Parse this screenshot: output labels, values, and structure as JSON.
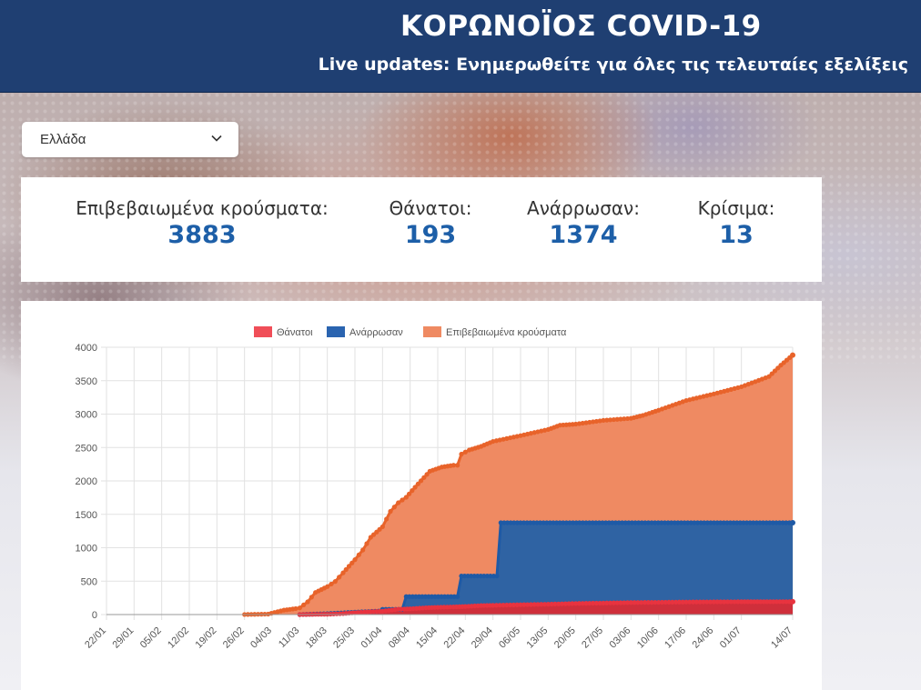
{
  "header": {
    "title": "ΚΟΡΩΝΟΪΟΣ COVID-19",
    "subtitle": "Live updates: Ενημερωθείτε για όλες τις τελευταίες εξελίξεις"
  },
  "country_select": {
    "value": "Ελλάδα",
    "icon": "chevron-down-icon"
  },
  "stats": [
    {
      "label": "Επιβεβαιωμένα κρούσματα:",
      "value": "3883"
    },
    {
      "label": "Θάνατοι:",
      "value": "193"
    },
    {
      "label": "Ανάρρωσαν:",
      "value": "1374"
    },
    {
      "label": "Κρίσιμα:",
      "value": "13"
    }
  ],
  "colors": {
    "header_bg": "#1f3f72",
    "stat_value": "#1d5fa8",
    "deaths": "#e8333f",
    "recovered": "#2a64b0",
    "confirmed": "#ef8a62",
    "confirmed_line": "#e8632a"
  },
  "chart_data": {
    "type": "area",
    "legend_position": "top-center",
    "grid": true,
    "ylim": [
      0,
      4000
    ],
    "yticks": [
      0,
      500,
      1000,
      1500,
      2000,
      2500,
      3000,
      3500,
      4000
    ],
    "xticks": [
      "22/01",
      "29/01",
      "05/02",
      "12/02",
      "19/02",
      "26/02",
      "04/03",
      "11/03",
      "18/03",
      "25/03",
      "01/04",
      "08/04",
      "15/04",
      "22/04",
      "29/04",
      "06/05",
      "13/05",
      "20/05",
      "27/05",
      "03/06",
      "10/06",
      "17/06",
      "24/06",
      "01/07",
      "14/07"
    ],
    "x_start": "22/01",
    "x_end": "14/07",
    "series": [
      {
        "name": "Θάνατοι",
        "color": "#e8333f",
        "points": [
          [
            "11/03",
            0
          ],
          [
            "15/03",
            4
          ],
          [
            "18/03",
            5
          ],
          [
            "22/03",
            15
          ],
          [
            "25/03",
            28
          ],
          [
            "29/03",
            43
          ],
          [
            "01/04",
            50
          ],
          [
            "05/04",
            79
          ],
          [
            "08/04",
            86
          ],
          [
            "12/04",
            101
          ],
          [
            "15/04",
            108
          ],
          [
            "19/04",
            114
          ],
          [
            "22/04",
            121
          ],
          [
            "26/04",
            134
          ],
          [
            "29/04",
            138
          ],
          [
            "06/05",
            147
          ],
          [
            "13/05",
            155
          ],
          [
            "20/05",
            166
          ],
          [
            "27/05",
            172
          ],
          [
            "03/06",
            180
          ],
          [
            "10/06",
            183
          ],
          [
            "17/06",
            188
          ],
          [
            "24/06",
            190
          ],
          [
            "01/07",
            192
          ],
          [
            "14/07",
            193
          ]
        ]
      },
      {
        "name": "Ανάρρωσαν",
        "color": "#2a64b0",
        "points": [
          [
            "11/03",
            0
          ],
          [
            "18/03",
            14
          ],
          [
            "25/03",
            36
          ],
          [
            "31/03",
            52
          ],
          [
            "01/04",
            78
          ],
          [
            "06/04",
            78
          ],
          [
            "07/04",
            269
          ],
          [
            "20/04",
            269
          ],
          [
            "21/04",
            577
          ],
          [
            "30/04",
            577
          ],
          [
            "01/05",
            1374
          ],
          [
            "14/07",
            1374
          ]
        ]
      },
      {
        "name": "Επιβεβαιωμένα κρούσματα",
        "color": "#ef8a62",
        "points": [
          [
            "26/02",
            1
          ],
          [
            "03/03",
            7
          ],
          [
            "07/03",
            66
          ],
          [
            "10/03",
            89
          ],
          [
            "11/03",
            99
          ],
          [
            "13/03",
            190
          ],
          [
            "15/03",
            331
          ],
          [
            "18/03",
            418
          ],
          [
            "20/03",
            495
          ],
          [
            "22/03",
            624
          ],
          [
            "25/03",
            821
          ],
          [
            "27/03",
            966
          ],
          [
            "29/03",
            1156
          ],
          [
            "01/04",
            1314
          ],
          [
            "03/04",
            1544
          ],
          [
            "05/04",
            1673
          ],
          [
            "07/04",
            1755
          ],
          [
            "10/04",
            1955
          ],
          [
            "13/04",
            2145
          ],
          [
            "16/04",
            2207
          ],
          [
            "19/04",
            2235
          ],
          [
            "20/04",
            2235
          ],
          [
            "21/04",
            2401
          ],
          [
            "23/04",
            2463
          ],
          [
            "26/04",
            2517
          ],
          [
            "29/04",
            2591
          ],
          [
            "06/05",
            2678
          ],
          [
            "13/05",
            2770
          ],
          [
            "16/05",
            2834
          ],
          [
            "20/05",
            2850
          ],
          [
            "27/05",
            2906
          ],
          [
            "03/06",
            2937
          ],
          [
            "06/06",
            2980
          ],
          [
            "10/06",
            3058
          ],
          [
            "17/06",
            3203
          ],
          [
            "24/06",
            3302
          ],
          [
            "01/07",
            3409
          ],
          [
            "08/07",
            3562
          ],
          [
            "11/07",
            3732
          ],
          [
            "14/07",
            3883
          ]
        ]
      }
    ]
  }
}
